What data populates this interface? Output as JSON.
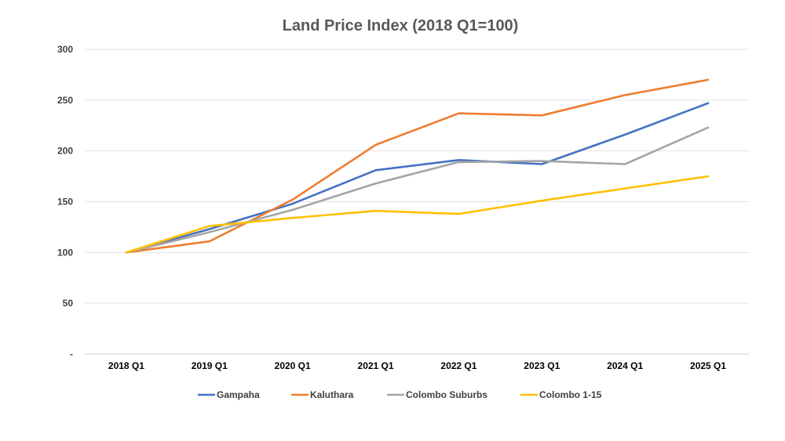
{
  "chart_data": {
    "type": "line",
    "title": "Land Price Index (2018 Q1=100)",
    "xlabel": "",
    "ylabel": "",
    "categories": [
      "2018 Q1",
      "2019 Q1",
      "2020 Q1",
      "2021 Q1",
      "2022 Q1",
      "2023 Q1",
      "2024 Q1",
      "2025 Q1"
    ],
    "ylim": [
      0,
      300
    ],
    "yticks": [
      0,
      50,
      100,
      150,
      200,
      250,
      300
    ],
    "ytick_labels": [
      "-",
      "50",
      "100",
      "150",
      "200",
      "250",
      "300"
    ],
    "grid": "horizontal",
    "legend_position": "bottom",
    "series": [
      {
        "name": "Gampaha",
        "color": "#4472C4",
        "values": [
          100,
          123,
          148,
          181,
          191,
          187,
          216,
          247
        ]
      },
      {
        "name": "Kaluthara",
        "color": "#ED7D31",
        "values": [
          100,
          111,
          152,
          206,
          237,
          235,
          255,
          270
        ]
      },
      {
        "name": "Colombo Suburbs",
        "color": "#A5A5A5",
        "values": [
          100,
          120,
          142,
          168,
          189,
          190,
          187,
          223
        ]
      },
      {
        "name": "Colombo 1-15",
        "color": "#FFC000",
        "values": [
          100,
          126,
          134,
          141,
          138,
          151,
          163,
          175
        ]
      }
    ]
  }
}
